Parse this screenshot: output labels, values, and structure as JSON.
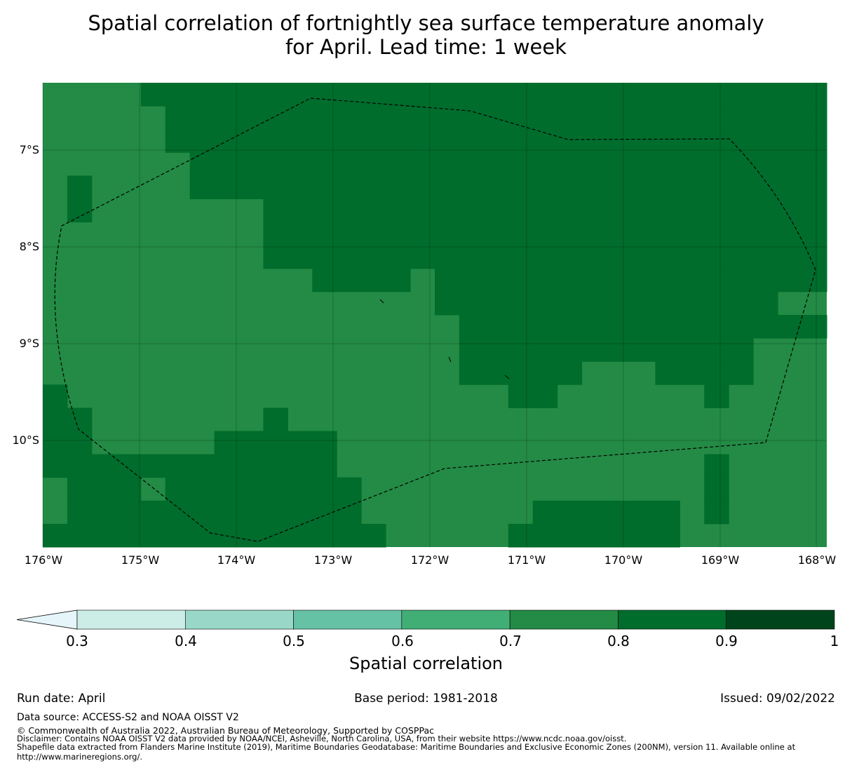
{
  "title_line1": "Spatial correlation of fortnightly sea surface temperature anomaly",
  "title_line2": "for April. Lead time: 1 week",
  "map": {
    "lat_labels": [
      "7°S",
      "8°S",
      "9°S",
      "10°S"
    ],
    "lon_labels": [
      "176°W",
      "175°W",
      "174°W",
      "173°W",
      "172°W",
      "171°W",
      "170°W",
      "169°W",
      "168°W"
    ],
    "colors": {
      "band_0_7_0_8": "#238b45",
      "band_0_8_0_9": "#006d2c"
    },
    "high_correlation_cells_0_8_0_9": [
      [
        0,
        [
          [
            4,
            31
          ]
        ]
      ],
      [
        1,
        [
          [
            5,
            31
          ]
        ]
      ],
      [
        2,
        [
          [
            5,
            31
          ]
        ]
      ],
      [
        3,
        [
          [
            6,
            31
          ]
        ]
      ],
      [
        4,
        [
          [
            1,
            1
          ],
          [
            6,
            31
          ]
        ]
      ],
      [
        5,
        [
          [
            1,
            1
          ],
          [
            9,
            31
          ]
        ]
      ],
      [
        6,
        [
          [
            9,
            31
          ]
        ]
      ],
      [
        7,
        [
          [
            9,
            31
          ]
        ]
      ],
      [
        8,
        [
          [
            11,
            14
          ],
          [
            16,
            31
          ]
        ]
      ],
      [
        9,
        [
          [
            16,
            29
          ]
        ]
      ],
      [
        10,
        [
          [
            17,
            31
          ]
        ]
      ],
      [
        11,
        [
          [
            17,
            28
          ]
        ]
      ],
      [
        12,
        [
          [
            17,
            21
          ],
          [
            25,
            28
          ]
        ]
      ],
      [
        13,
        [
          [
            0,
            0
          ],
          [
            19,
            20
          ],
          [
            27,
            27
          ]
        ]
      ],
      [
        14,
        [
          [
            0,
            1
          ],
          [
            9,
            9
          ]
        ]
      ],
      [
        15,
        [
          [
            0,
            1
          ],
          [
            7,
            11
          ]
        ]
      ],
      [
        16,
        [
          [
            0,
            0
          ],
          [
            1,
            4
          ],
          [
            5,
            11
          ],
          [
            27,
            27
          ]
        ]
      ],
      [
        17,
        [
          [
            1,
            3
          ],
          [
            5,
            12
          ],
          [
            27,
            27
          ]
        ]
      ],
      [
        18,
        [
          [
            1,
            12
          ],
          [
            20,
            25
          ],
          [
            27,
            27
          ]
        ]
      ],
      [
        19,
        [
          [
            0,
            13
          ],
          [
            19,
            25
          ]
        ]
      ]
    ]
  },
  "colorbar": {
    "ticks": [
      "0.3",
      "0.4",
      "0.5",
      "0.6",
      "0.7",
      "0.8",
      "0.9",
      "1"
    ],
    "extend_color": "#e5f5f9",
    "colors": [
      "#ccece6",
      "#99d8c9",
      "#66c2a4",
      "#41ae76",
      "#238b45",
      "#006d2c",
      "#00441b"
    ],
    "label": "Spatial correlation"
  },
  "footer": {
    "run_date": "Run date: April",
    "base_period": "Base period: 1981-2018",
    "issued": "Issued: 09/02/2022",
    "data_source": "Data source: ACCESS-S2 and NOAA OISST V2",
    "copyright": "© Commonwealth of Australia 2022, Australian Bureau of Meteorology, Supported by COSPPac",
    "disclaimer": "Disclaimer: Contains NOAA OISST V2 data provided by NOAA/NCEI, Asheville, North Carolina, USA, from their website https://www.ncdc.noaa.gov/oisst.",
    "shapefile": "Shapefile data extracted from Flanders Marine Institute (2019), Maritime Boundaries Geodatabase: Maritime Boundaries and Exclusive Economic Zones (200NM), version 11. Available online at http://www.marineregions.org/."
  }
}
